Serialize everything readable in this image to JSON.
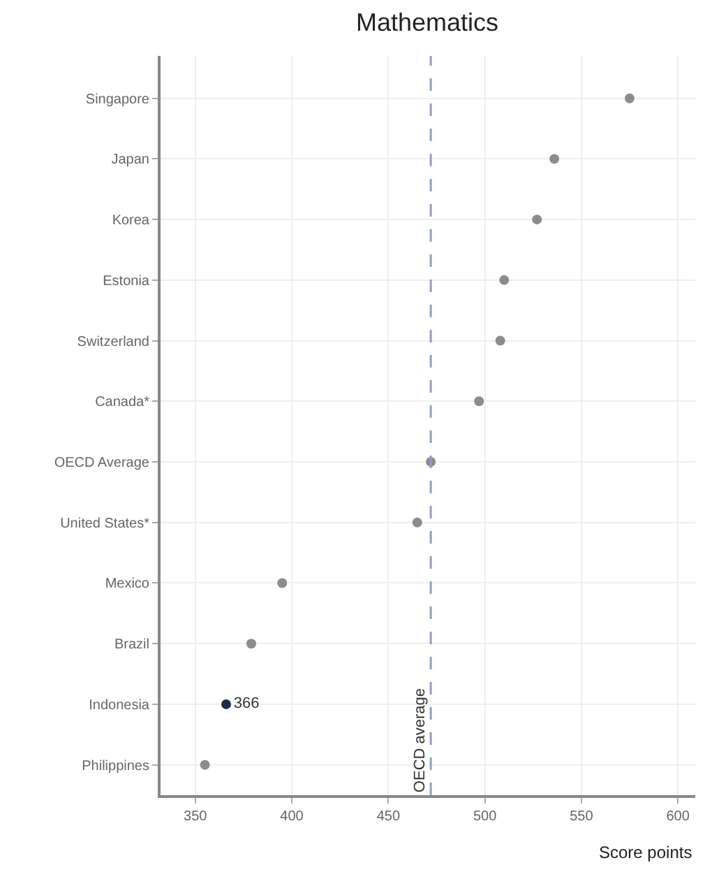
{
  "chart_data": {
    "type": "scatter",
    "orientation": "horizontal",
    "title": "Mathematics",
    "xlabel": "Score points",
    "categories": [
      "Singapore",
      "Japan",
      "Korea",
      "Estonia",
      "Switzerland",
      "Canada*",
      "OECD Average",
      "United States*",
      "Mexico",
      "Brazil",
      "Indonesia",
      "Philippines"
    ],
    "values": [
      575,
      536,
      527,
      510,
      508,
      497,
      472,
      465,
      395,
      379,
      366,
      355
    ],
    "colors": [
      "#8c8c8c",
      "#8c8c8c",
      "#8c8c8c",
      "#8c8c8c",
      "#8c8c8c",
      "#8c8c8c",
      "#8c8c8c",
      "#8c8c8c",
      "#8c8c8c",
      "#8c8c8c",
      "#1c2b4a",
      "#8c8c8c"
    ],
    "value_labels": [
      null,
      null,
      null,
      null,
      null,
      null,
      null,
      null,
      null,
      null,
      "366",
      null
    ],
    "xlim": [
      332,
      609
    ],
    "xticks": [
      350,
      400,
      450,
      500,
      550,
      600
    ],
    "ref_lines": [
      {
        "axis": "x",
        "value": 472,
        "label": "OECD average",
        "color": "#8fa0c4",
        "line_style": "dashed"
      }
    ],
    "grid": true,
    "marker": "circle"
  }
}
